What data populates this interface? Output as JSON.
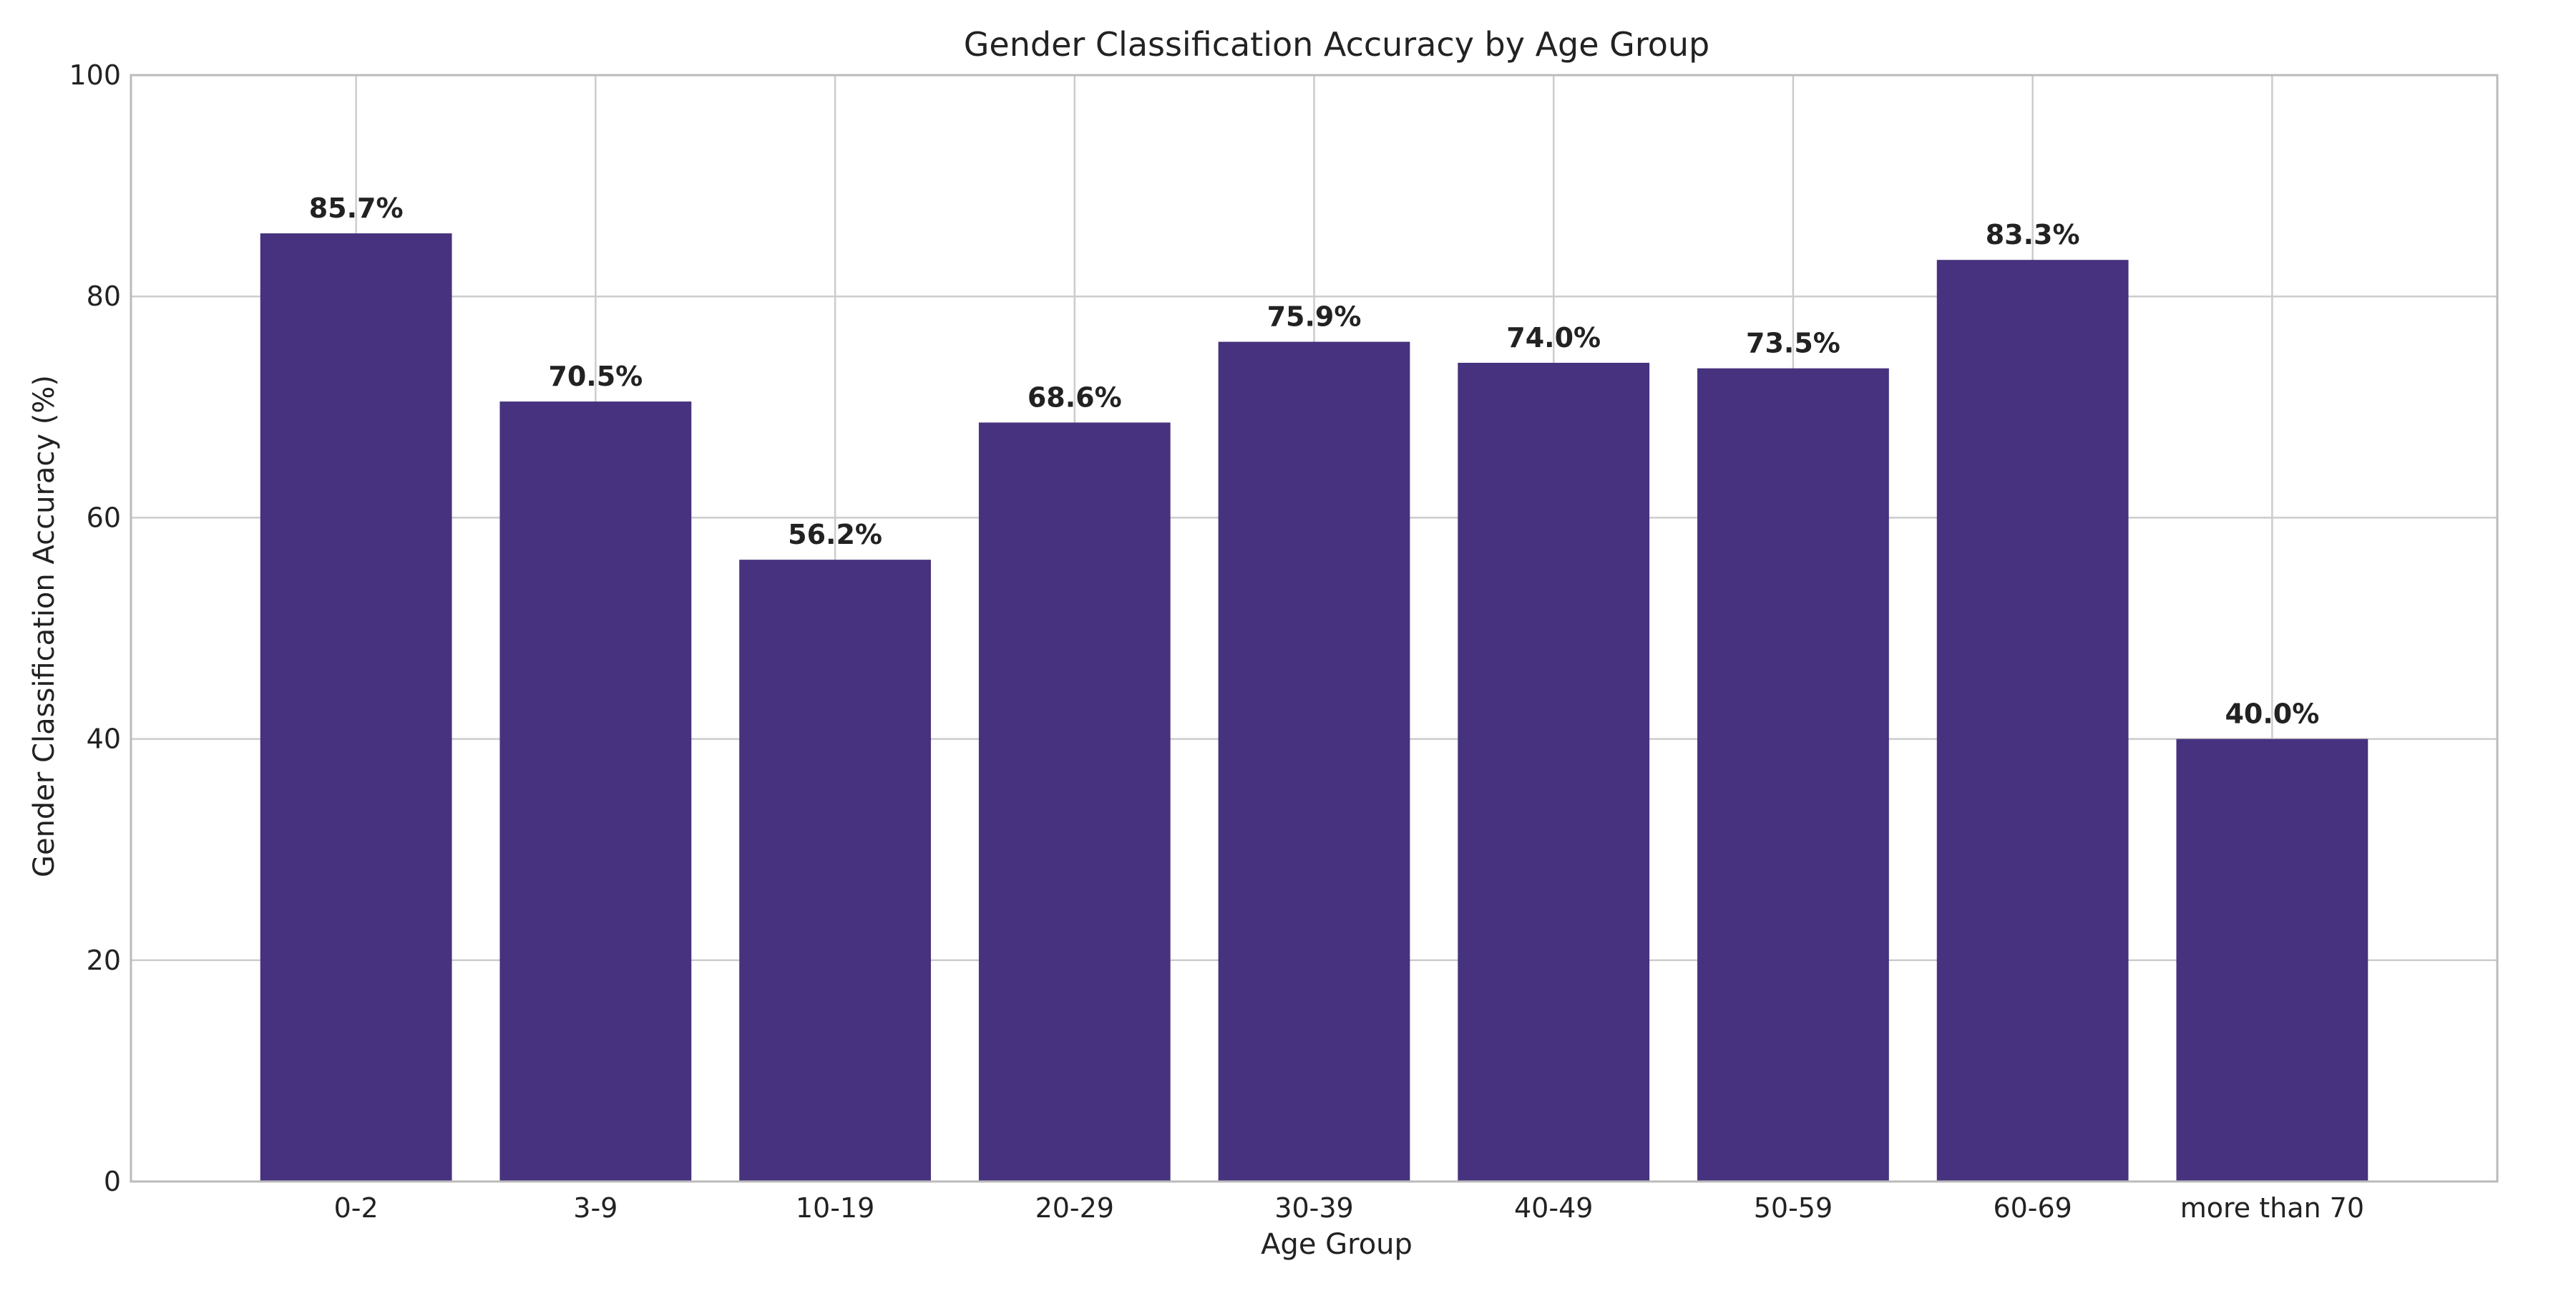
{
  "chart_data": {
    "type": "bar",
    "title": "Gender Classification Accuracy by Age Group",
    "xlabel": "Age Group",
    "ylabel": "Gender Classification Accuracy (%)",
    "categories": [
      "0-2",
      "3-9",
      "10-19",
      "20-29",
      "30-39",
      "40-49",
      "50-59",
      "60-69",
      "more than 70"
    ],
    "values": [
      85.7,
      70.5,
      56.2,
      68.6,
      75.9,
      74.0,
      73.5,
      83.3,
      40.0
    ],
    "data_labels": [
      "85.7%",
      "70.5%",
      "56.2%",
      "68.6%",
      "75.9%",
      "74.0%",
      "73.5%",
      "83.3%",
      "40.0%"
    ],
    "ylim": [
      0,
      100
    ],
    "yticks": [
      0,
      20,
      40,
      60,
      80,
      100
    ],
    "ytick_labels": [
      "0",
      "20",
      "40",
      "60",
      "80",
      "100"
    ],
    "grid": true,
    "legend": "none",
    "bar_color": "#46327e"
  }
}
